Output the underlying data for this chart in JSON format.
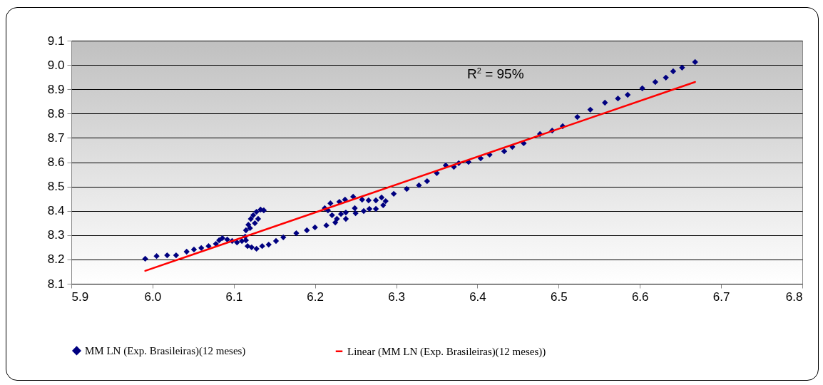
{
  "chart_data": {
    "type": "scatter",
    "xlim": [
      5.9,
      6.8
    ],
    "xticks": [
      5.9,
      {
        "value": 6,
        "label": "6.0"
      },
      6.1,
      6.2,
      6.3,
      6.4,
      6.5,
      6.6,
      6.7,
      6.8
    ],
    "ylim": [
      8.1,
      9.1
    ],
    "yticks": [
      8.1,
      8.2,
      8.3,
      8.4,
      8.5,
      8.6,
      8.7,
      8.8,
      8.9,
      {
        "value": 9,
        "label": "9.0"
      },
      9.1
    ],
    "grid": "y",
    "legend": "bottom",
    "annotations": [
      "R$^{2}$ = 95%"
    ],
    "series": [
      {
        "name": "MM LN (Exp. Brasileiras)(12 meses)",
        "marker": "diamond",
        "color": "#000080",
        "x": [
          5.991,
          6.005,
          6.018,
          6.029,
          6.042,
          6.051,
          6.06,
          6.069,
          6.078,
          6.082,
          6.086,
          6.092,
          6.098,
          6.104,
          6.11,
          6.114,
          6.115,
          6.118,
          6.121,
          6.124,
          6.128,
          6.133,
          6.137,
          6.13,
          6.126,
          6.12,
          6.115,
          6.117,
          6.122,
          6.128,
          6.135,
          6.143,
          6.152,
          6.161,
          6.177,
          6.19,
          6.2,
          6.214,
          6.225,
          6.227,
          6.221,
          6.216,
          6.212,
          6.219,
          6.23,
          6.237,
          6.247,
          6.258,
          6.266,
          6.275,
          6.282,
          6.287,
          6.284,
          6.275,
          6.267,
          6.26,
          6.25,
          6.249,
          6.238,
          6.232,
          6.238,
          6.297,
          6.313,
          6.328,
          6.338,
          6.35,
          6.361,
          6.371,
          6.377,
          6.389,
          6.404,
          6.415,
          6.433,
          6.443,
          6.457,
          6.477,
          6.492,
          6.505,
          6.523,
          6.539,
          6.557,
          6.573,
          6.585,
          6.603,
          6.619,
          6.632,
          6.641,
          6.652,
          6.668
        ],
        "values": [
          8.203,
          8.214,
          8.217,
          8.217,
          8.232,
          8.241,
          8.247,
          8.255,
          8.264,
          8.279,
          8.288,
          8.282,
          8.276,
          8.27,
          8.276,
          8.294,
          8.32,
          8.343,
          8.367,
          8.382,
          8.396,
          8.405,
          8.402,
          8.367,
          8.349,
          8.329,
          8.279,
          8.255,
          8.25,
          8.244,
          8.255,
          8.261,
          8.276,
          8.291,
          8.308,
          8.32,
          8.332,
          8.34,
          8.352,
          8.367,
          8.382,
          8.402,
          8.411,
          8.431,
          8.437,
          8.446,
          8.458,
          8.446,
          8.443,
          8.443,
          8.455,
          8.44,
          8.423,
          8.408,
          8.408,
          8.399,
          8.39,
          8.411,
          8.393,
          8.387,
          8.367,
          8.47,
          8.49,
          8.505,
          8.522,
          8.555,
          8.587,
          8.581,
          8.596,
          8.601,
          8.616,
          8.631,
          8.645,
          8.663,
          8.678,
          8.716,
          8.73,
          8.748,
          8.786,
          8.816,
          8.845,
          8.862,
          8.877,
          8.904,
          8.93,
          8.948,
          8.974,
          8.989,
          9.012
        ]
      },
      {
        "name": "Linear (MM LN (Exp. Brasileiras)(12 meses))",
        "type": "line",
        "marker": "none",
        "color": "#ff0000",
        "x": [
          5.991,
          6.668
        ],
        "values": [
          8.153,
          8.93
        ]
      }
    ]
  }
}
